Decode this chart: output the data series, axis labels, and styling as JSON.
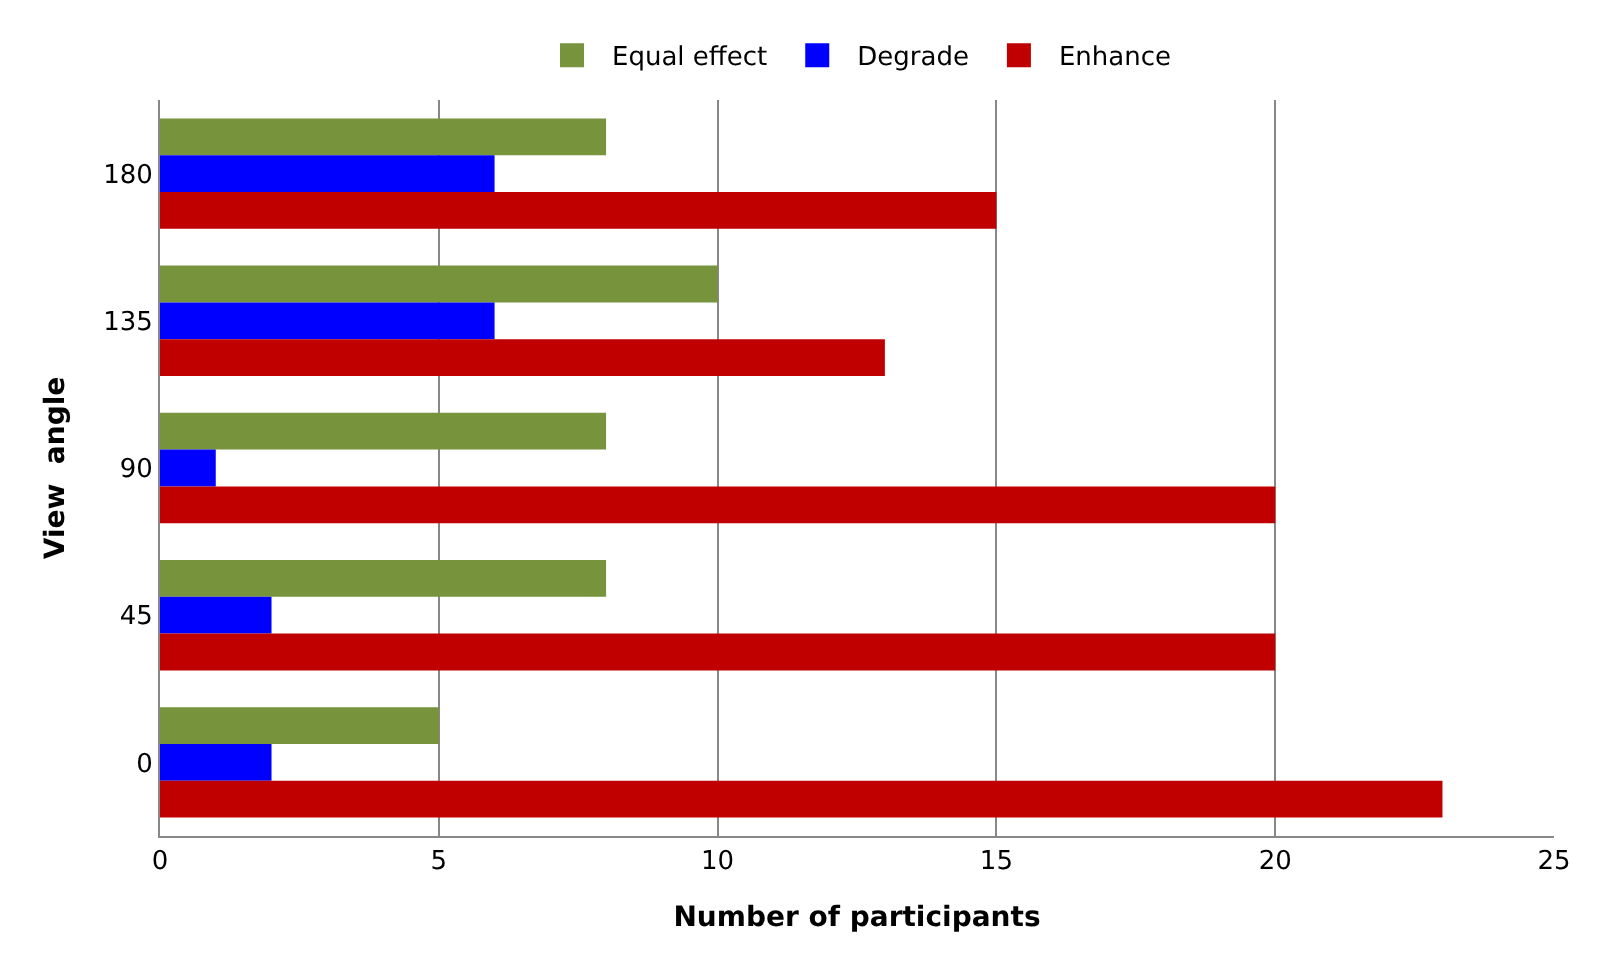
{
  "chart_data": {
    "type": "bar",
    "orientation": "horizontal",
    "xlabel": "Number of participants",
    "ylabel": "View  angle",
    "categories": [
      "180",
      "135",
      "90",
      "45",
      "0"
    ],
    "series": [
      {
        "name": "Equal effect",
        "color": "#77933c",
        "values": [
          8,
          10,
          8,
          8,
          5
        ]
      },
      {
        "name": "Degrade",
        "color": "#0000ff",
        "values": [
          6,
          6,
          1,
          2,
          2
        ]
      },
      {
        "name": "Enhance",
        "color": "#c00000",
        "values": [
          15,
          13,
          20,
          20,
          23
        ]
      }
    ],
    "xlim": [
      0,
      25
    ],
    "xticks": [
      0,
      5,
      10,
      15,
      20,
      25
    ],
    "grid": "x",
    "legend": "top"
  }
}
